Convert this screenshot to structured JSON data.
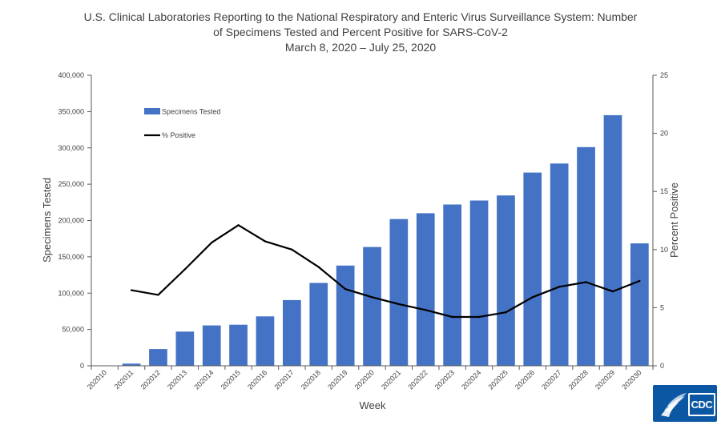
{
  "chart_data": {
    "type": "bar+line",
    "title_lines": [
      "U.S. Clinical Laboratories Reporting to the National Respiratory and Enteric Virus Surveillance System: Number",
      "of Specimens Tested and Percent Positive for SARS-CoV-2",
      "March 8, 2020 – July 25, 2020"
    ],
    "xlabel": "Week",
    "ylabel": "Specimens Tested",
    "y2label": "Percent Positive",
    "ylim": [
      0,
      400000
    ],
    "y2lim": [
      0,
      25
    ],
    "yticks": [
      "0",
      "50,000",
      "100,000",
      "150,000",
      "200,000",
      "250,000",
      "300,000",
      "350,000",
      "400,000"
    ],
    "y2ticks": [
      "0",
      "5",
      "10",
      "15",
      "20",
      "25"
    ],
    "categories": [
      "202010",
      "202011",
      "202012",
      "202013",
      "202014",
      "202015",
      "202016",
      "202017",
      "202018",
      "202019",
      "202020",
      "202021",
      "202022",
      "202023",
      "202024",
      "202025",
      "202026",
      "202027",
      "202028",
      "202029",
      "202030"
    ],
    "series": [
      {
        "name": "Specimens Tested",
        "type": "bar",
        "axis": "left",
        "color": "#4472c4",
        "values": [
          0,
          3000,
          23000,
          47000,
          55500,
          56500,
          68000,
          90500,
          114000,
          138000,
          163500,
          202000,
          210000,
          222000,
          227500,
          234500,
          266000,
          278500,
          301000,
          345000,
          168500
        ]
      },
      {
        "name": "% Positive",
        "type": "line",
        "axis": "right",
        "color": "#000000",
        "values": [
          null,
          6.5,
          6.1,
          8.3,
          10.6,
          12.1,
          10.7,
          10.0,
          8.5,
          6.6,
          5.9,
          5.3,
          4.8,
          4.2,
          4.2,
          4.6,
          5.9,
          6.8,
          7.2,
          6.4,
          7.3
        ]
      }
    ],
    "grid": false,
    "legend": "top-left"
  },
  "logo": {
    "text": "CDC"
  }
}
